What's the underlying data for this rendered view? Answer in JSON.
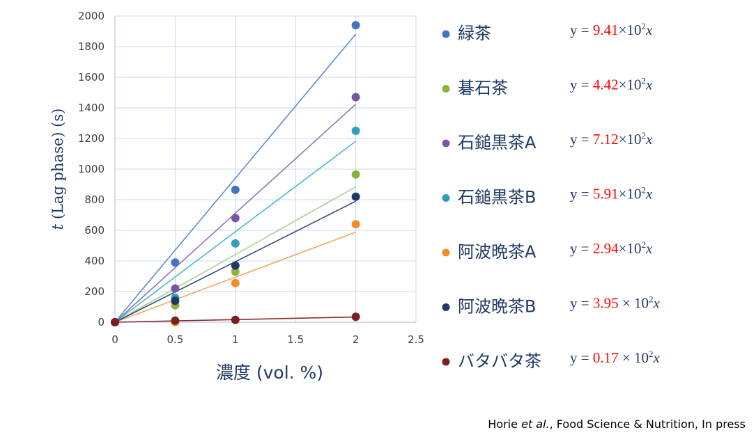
{
  "chart_data": {
    "type": "scatter",
    "title": "",
    "xlabel": "濃度 (vol. %)",
    "ylabel_var": "t",
    "ylabel_rest": " (Lag phase) (s)",
    "xlim": [
      0,
      2.5
    ],
    "ylim": [
      0,
      2000
    ],
    "x_ticks": [
      "0",
      "0.5",
      "1",
      "1.5",
      "2",
      "2.5"
    ],
    "y_ticks": [
      "0",
      "200",
      "400",
      "600",
      "800",
      "1000",
      "1200",
      "1400",
      "1600",
      "1800",
      "2000"
    ],
    "grid": true,
    "legend_position": "right",
    "x": [
      0,
      0.5,
      1,
      2
    ],
    "series": [
      {
        "name": "緑茶",
        "color": "#4472c4",
        "line_color": "#5b8bd0",
        "values": [
          0,
          390,
          865,
          1940
        ],
        "slope": 941,
        "eq_prefix": "y = ",
        "eq_coef": "9.41",
        "eq_times": "×",
        "eq_base": "10",
        "eq_exp": "2",
        "eq_var": "x"
      },
      {
        "name": "碁石茶",
        "color": "#8db33a",
        "line_color": "#a9d18e",
        "values": [
          0,
          110,
          330,
          965
        ],
        "slope": 442,
        "eq_prefix": "y = ",
        "eq_coef": "4.42",
        "eq_times": "×",
        "eq_base": "10",
        "eq_exp": "2",
        "eq_var": "x"
      },
      {
        "name": "石鎚黒茶A",
        "color": "#7a55a3",
        "line_color": "#8e74b6",
        "values": [
          0,
          220,
          680,
          1470
        ],
        "slope": 712,
        "eq_prefix": "y = ",
        "eq_coef": "7.12",
        "eq_times": "×",
        "eq_base": "10",
        "eq_exp": "2",
        "eq_var": "x"
      },
      {
        "name": "石鎚黒茶B",
        "color": "#2e9fc0",
        "line_color": "#4bb5d0",
        "values": [
          0,
          160,
          515,
          1250
        ],
        "slope": 591,
        "eq_prefix": "y = ",
        "eq_coef": "5.91",
        "eq_times": "×",
        "eq_base": "10",
        "eq_exp": "2",
        "eq_var": "x"
      },
      {
        "name": "阿波晩茶A",
        "color": "#f28c28",
        "line_color": "#f4a460",
        "values": [
          0,
          0,
          255,
          640
        ],
        "slope": 294,
        "eq_prefix": "y = ",
        "eq_coef": "2.94",
        "eq_times": "×",
        "eq_base": "10",
        "eq_exp": "2",
        "eq_var": "x"
      },
      {
        "name": "阿波晩茶B",
        "color": "#1f3864",
        "line_color": "#2e4a7a",
        "values": [
          0,
          140,
          370,
          820
        ],
        "slope": 395,
        "eq_prefix": "y = ",
        "eq_coef": "3.95",
        "eq_times": " × ",
        "eq_base": "10",
        "eq_exp": "2",
        "eq_var": "x"
      },
      {
        "name": "バタバタ茶",
        "color": "#7b2020",
        "line_color": "#8b2a2a",
        "values": [
          0,
          10,
          15,
          35
        ],
        "slope": 17,
        "eq_prefix": "y = ",
        "eq_coef": "0.17",
        "eq_times": " × ",
        "eq_base": "10",
        "eq_exp": "2",
        "eq_var": "x"
      }
    ]
  },
  "citation": {
    "authors": "Horie ",
    "etal": "et al.",
    "rest": ", Food Science & Nutrition, In press"
  }
}
